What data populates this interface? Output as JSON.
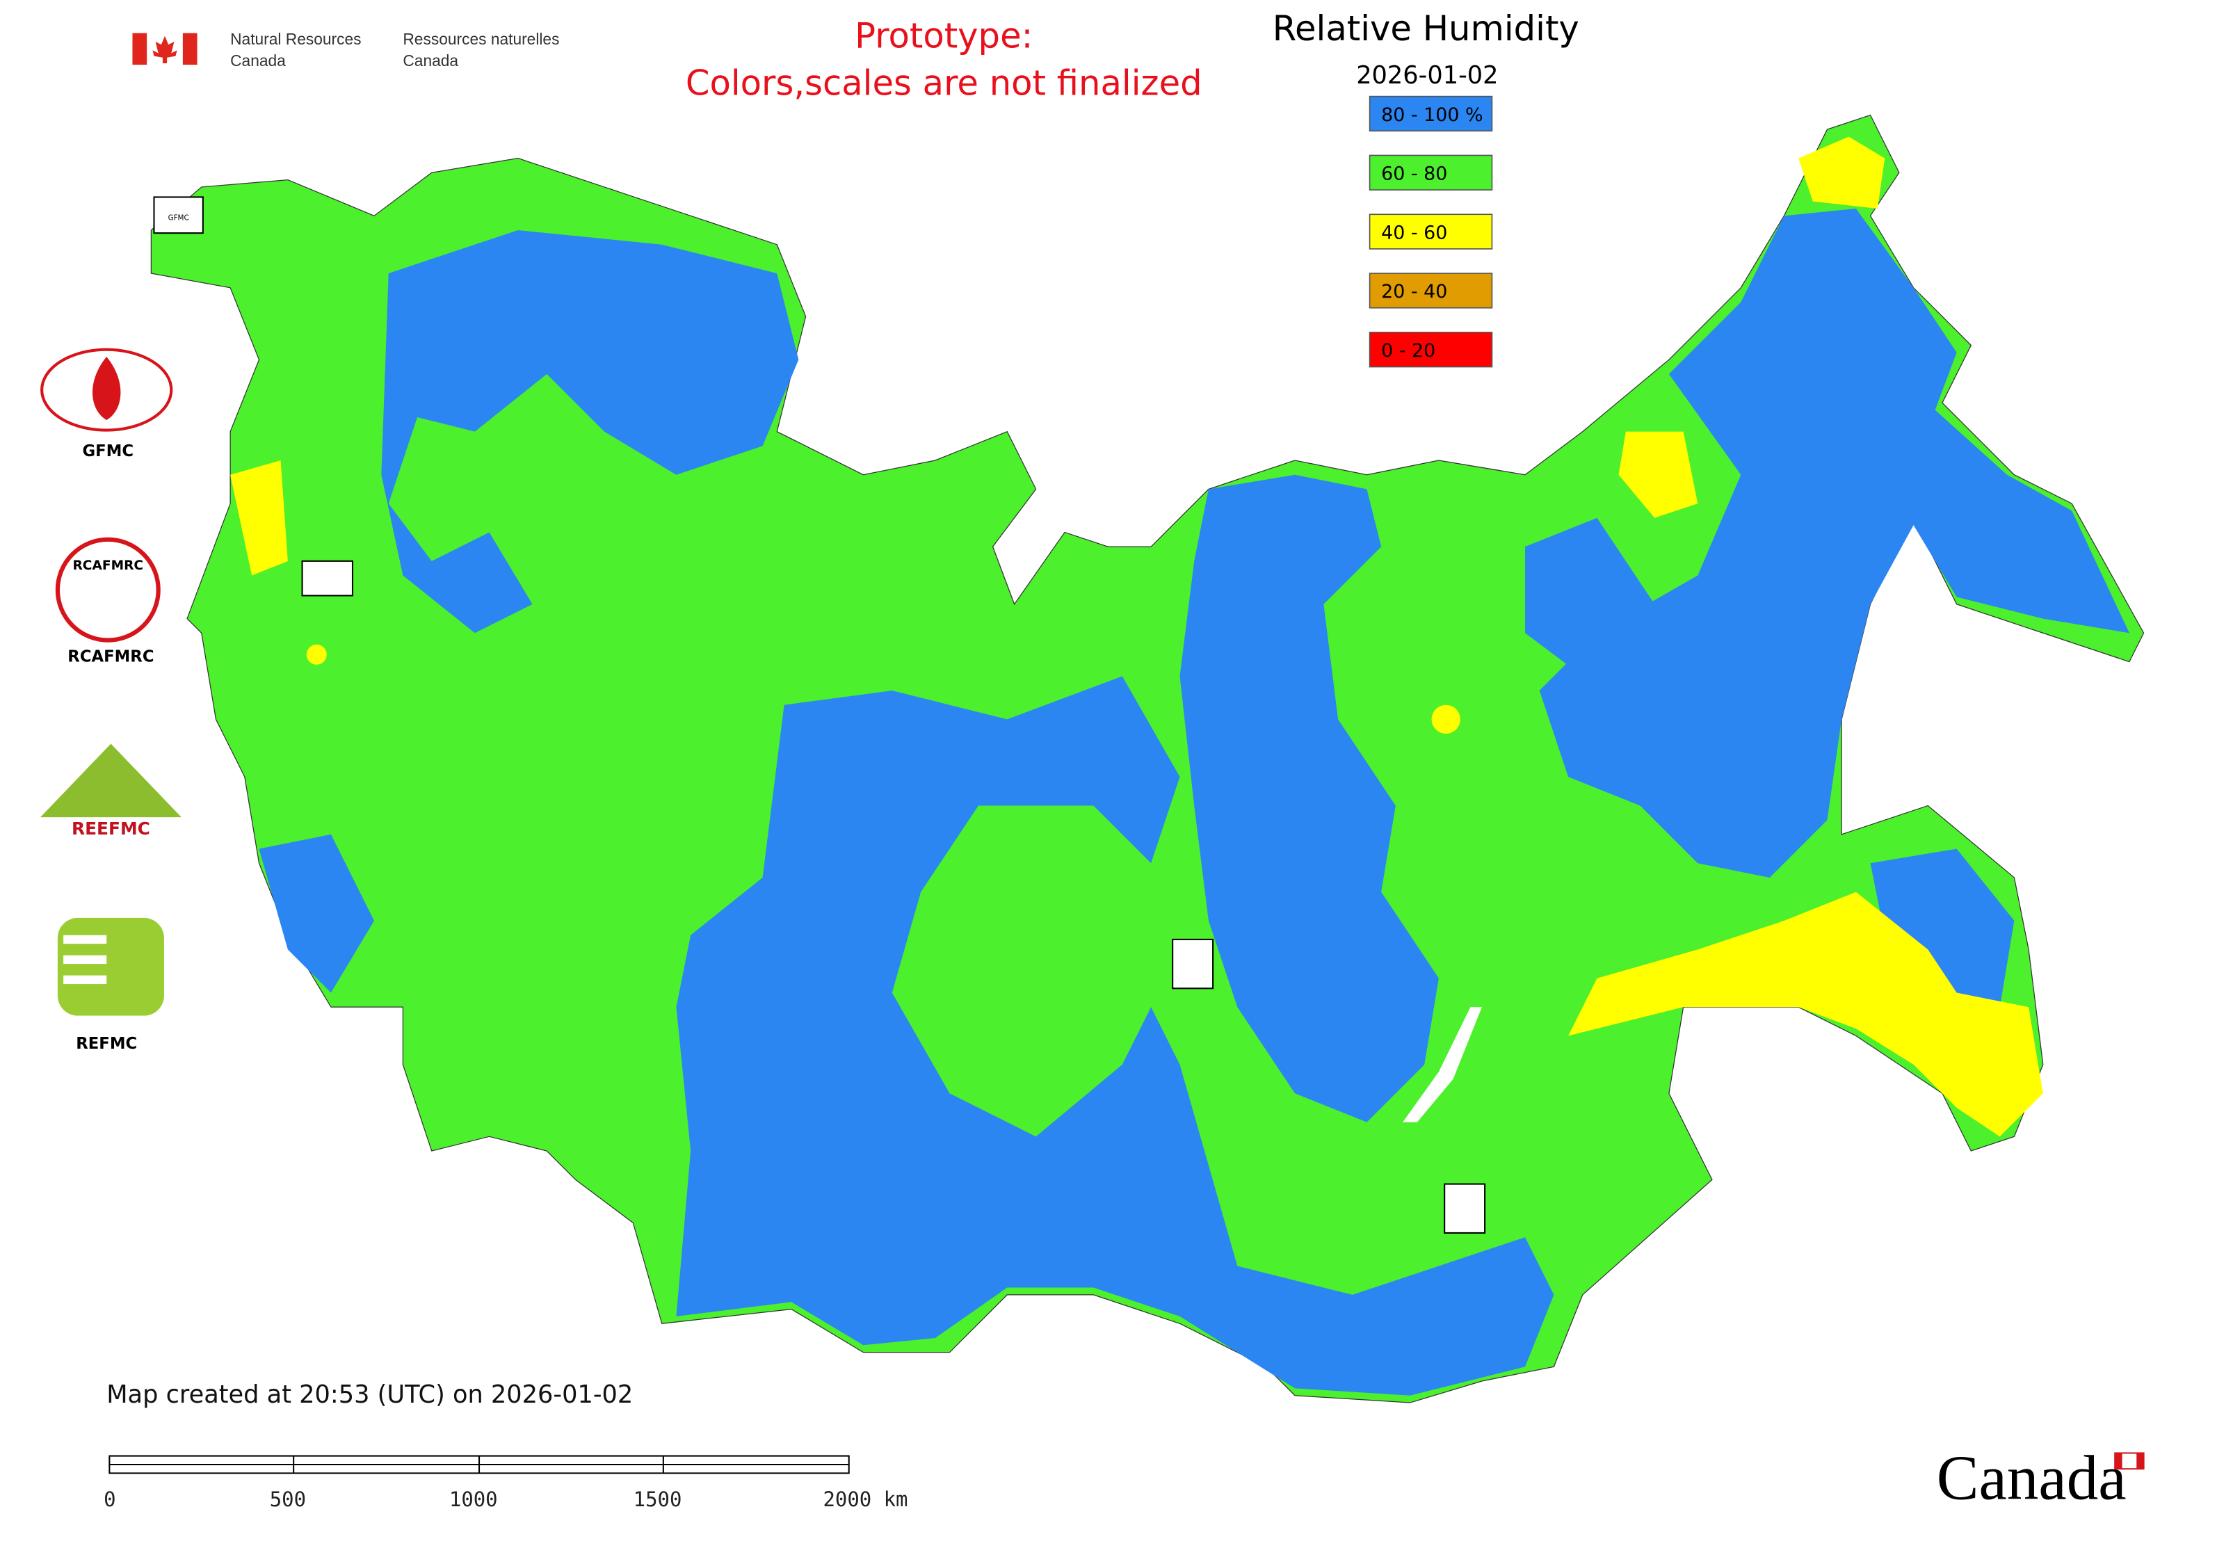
{
  "header": {
    "agency_en": [
      "Natural Resources",
      "Canada"
    ],
    "agency_fr": [
      "Ressources naturelles",
      "Canada"
    ],
    "notice": [
      "Prototype:",
      "Colors,scales are not finalized"
    ]
  },
  "legend": {
    "title": "Relative Humidity",
    "date": "2026-01-02",
    "classes": [
      {
        "label": "80 - 100 %",
        "color": "#2b86f2"
      },
      {
        "label": "60 - 80",
        "color": "#4cf02c"
      },
      {
        "label": "40 - 60",
        "color": "#ffff00"
      },
      {
        "label": "20 - 40",
        "color": "#e09c00"
      },
      {
        "label": "0 - 20",
        "color": "#ff0000"
      }
    ]
  },
  "logos": {
    "labels": [
      "GFMC",
      "RCAFMRC",
      "REFMC"
    ],
    "texts": [
      "RCAFMRC",
      "REEFMC",
      "GFMC"
    ]
  },
  "footer": {
    "created": "Map created at 20:53 (UTC) on 2026-01-02",
    "scale_labels": [
      "0",
      "500",
      "1000",
      "1500",
      "2000 km"
    ],
    "wordmark": "Canada"
  }
}
